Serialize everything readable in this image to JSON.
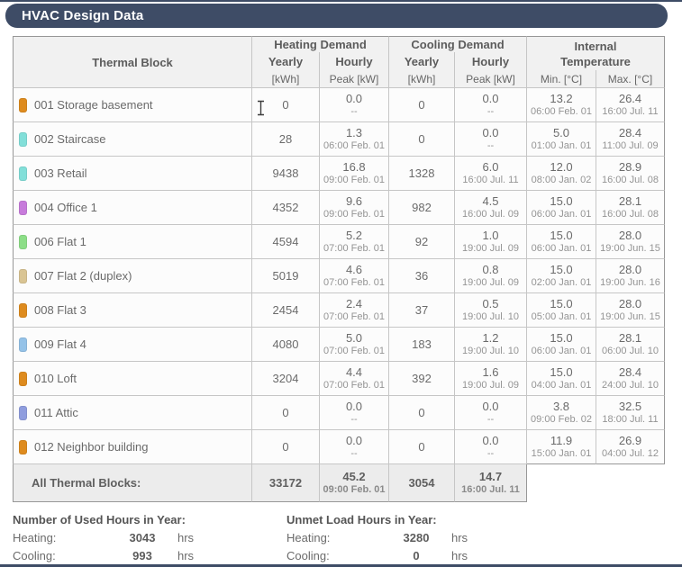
{
  "title": "HVAC Design Data",
  "colors": {
    "title_bar": "#3e4c66",
    "header_bg": "#f1f1f1",
    "total_row_bg": "#ececec",
    "inner_border": "#c6c6c6",
    "outer_border": "#979797"
  },
  "icons": {
    "text_cursor": "i-beam"
  },
  "table": {
    "header": {
      "thermal_block": "Thermal Block",
      "heating_group": "Heating Demand",
      "cooling_group": "Cooling Demand",
      "internal_group_line1": "Internal",
      "internal_group_line2": "Temperature",
      "yearly": "Yearly",
      "hourly": "Hourly",
      "kwh_unit": "[kWh]",
      "peak_unit": "Peak [kW]",
      "min_c": "Min. [°C]",
      "max_c": "Max. [°C]"
    },
    "rows": [
      {
        "name": "001 Storage basement",
        "color": "#de8b1e",
        "heating_yearly": "0",
        "heating_peak": "0.0",
        "heating_peak_time": "--",
        "cooling_yearly": "0",
        "cooling_peak": "0.0",
        "cooling_peak_time": "--",
        "temp_min": "13.2",
        "temp_min_time": "06:00 Feb. 01",
        "temp_max": "26.4",
        "temp_max_time": "16:00 Jul. 11"
      },
      {
        "name": "002 Staircase",
        "color": "#82dfd9",
        "heating_yearly": "28",
        "heating_peak": "1.3",
        "heating_peak_time": "06:00 Feb. 01",
        "cooling_yearly": "0",
        "cooling_peak": "0.0",
        "cooling_peak_time": "--",
        "temp_min": "5.0",
        "temp_min_time": "01:00 Jan. 01",
        "temp_max": "28.4",
        "temp_max_time": "11:00 Jul. 09"
      },
      {
        "name": "003 Retail",
        "color": "#82dfd9",
        "heating_yearly": "9438",
        "heating_peak": "16.8",
        "heating_peak_time": "09:00 Feb. 01",
        "cooling_yearly": "1328",
        "cooling_peak": "6.0",
        "cooling_peak_time": "16:00 Jul. 11",
        "temp_min": "12.0",
        "temp_min_time": "08:00 Jan. 02",
        "temp_max": "28.9",
        "temp_max_time": "16:00 Jul. 08"
      },
      {
        "name": "004 Office 1",
        "color": "#c77bdb",
        "heating_yearly": "4352",
        "heating_peak": "9.6",
        "heating_peak_time": "09:00 Feb. 01",
        "cooling_yearly": "982",
        "cooling_peak": "4.5",
        "cooling_peak_time": "16:00 Jul. 09",
        "temp_min": "15.0",
        "temp_min_time": "06:00 Jan. 01",
        "temp_max": "28.1",
        "temp_max_time": "16:00 Jul. 08"
      },
      {
        "name": "006 Flat 1",
        "color": "#8cde87",
        "heating_yearly": "4594",
        "heating_peak": "5.2",
        "heating_peak_time": "07:00 Feb. 01",
        "cooling_yearly": "92",
        "cooling_peak": "1.0",
        "cooling_peak_time": "19:00 Jul. 09",
        "temp_min": "15.0",
        "temp_min_time": "06:00 Jan. 01",
        "temp_max": "28.0",
        "temp_max_time": "19:00 Jun. 15"
      },
      {
        "name": "007 Flat 2 (duplex)",
        "color": "#d9c493",
        "heating_yearly": "5019",
        "heating_peak": "4.6",
        "heating_peak_time": "07:00 Feb. 01",
        "cooling_yearly": "36",
        "cooling_peak": "0.8",
        "cooling_peak_time": "19:00 Jul. 09",
        "temp_min": "15.0",
        "temp_min_time": "02:00 Jan. 01",
        "temp_max": "28.0",
        "temp_max_time": "19:00 Jun. 16"
      },
      {
        "name": "008 Flat 3",
        "color": "#de8b1e",
        "heating_yearly": "2454",
        "heating_peak": "2.4",
        "heating_peak_time": "07:00 Feb. 01",
        "cooling_yearly": "37",
        "cooling_peak": "0.5",
        "cooling_peak_time": "19:00 Jul. 10",
        "temp_min": "15.0",
        "temp_min_time": "05:00 Jan. 01",
        "temp_max": "28.0",
        "temp_max_time": "19:00 Jun. 15"
      },
      {
        "name": "009 Flat 4",
        "color": "#94c2e8",
        "heating_yearly": "4080",
        "heating_peak": "5.0",
        "heating_peak_time": "07:00 Feb. 01",
        "cooling_yearly": "183",
        "cooling_peak": "1.2",
        "cooling_peak_time": "19:00 Jul. 10",
        "temp_min": "15.0",
        "temp_min_time": "06:00 Jan. 01",
        "temp_max": "28.1",
        "temp_max_time": "06:00 Jul. 10"
      },
      {
        "name": "010 Loft",
        "color": "#de8b1e",
        "heating_yearly": "3204",
        "heating_peak": "4.4",
        "heating_peak_time": "07:00 Feb. 01",
        "cooling_yearly": "392",
        "cooling_peak": "1.6",
        "cooling_peak_time": "19:00 Jul. 09",
        "temp_min": "15.0",
        "temp_min_time": "04:00 Jan. 01",
        "temp_max": "28.4",
        "temp_max_time": "24:00 Jul. 10"
      },
      {
        "name": "011 Attic",
        "color": "#8f9dde",
        "heating_yearly": "0",
        "heating_peak": "0.0",
        "heating_peak_time": "--",
        "cooling_yearly": "0",
        "cooling_peak": "0.0",
        "cooling_peak_time": "--",
        "temp_min": "3.8",
        "temp_min_time": "09:00 Feb. 02",
        "temp_max": "32.5",
        "temp_max_time": "18:00 Jul. 11"
      },
      {
        "name": "012 Neighbor building",
        "color": "#de8b1e",
        "heating_yearly": "0",
        "heating_peak": "0.0",
        "heating_peak_time": "--",
        "cooling_yearly": "0",
        "cooling_peak": "0.0",
        "cooling_peak_time": "--",
        "temp_min": "11.9",
        "temp_min_time": "15:00 Jan. 01",
        "temp_max": "26.9",
        "temp_max_time": "04:00 Jul. 12"
      }
    ],
    "total": {
      "label": "All Thermal Blocks:",
      "heating_yearly": "33172",
      "heating_peak": "45.2",
      "heating_peak_time": "09:00 Feb. 01",
      "cooling_yearly": "3054",
      "cooling_peak": "14.7",
      "cooling_peak_time": "16:00 Jul. 11"
    }
  },
  "summary": {
    "used_hours": {
      "title": "Number of Used Hours in Year:",
      "rows": [
        {
          "label": "Heating:",
          "value": "3043",
          "unit": "hrs"
        },
        {
          "label": "Cooling:",
          "value": "993",
          "unit": "hrs"
        }
      ]
    },
    "unmet_hours": {
      "title": "Unmet Load Hours in Year:",
      "rows": [
        {
          "label": "Heating:",
          "value": "3280",
          "unit": "hrs"
        },
        {
          "label": "Cooling:",
          "value": "0",
          "unit": "hrs"
        }
      ]
    }
  }
}
